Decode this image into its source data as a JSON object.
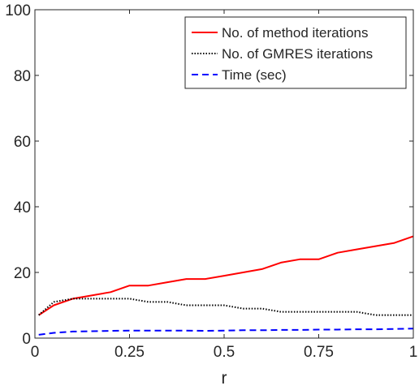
{
  "chart_data": {
    "type": "line",
    "xlabel": "r",
    "ylabel": "",
    "xlim": [
      0,
      1
    ],
    "ylim": [
      0,
      100
    ],
    "xticks": [
      0,
      0.25,
      0.5,
      0.75,
      1
    ],
    "yticks": [
      0,
      20,
      40,
      60,
      80,
      100
    ],
    "xtick_labels": [
      "0",
      "0.25",
      "0.5",
      "0.75",
      "1"
    ],
    "ytick_labels": [
      "0",
      "20",
      "40",
      "60",
      "80",
      "100"
    ],
    "grid": false,
    "legend_position": "top-right",
    "series": [
      {
        "name": "No. of method iterations",
        "color": "#ff0000",
        "style": "solid",
        "x": [
          0.01,
          0.05,
          0.1,
          0.15,
          0.2,
          0.25,
          0.3,
          0.35,
          0.4,
          0.45,
          0.5,
          0.55,
          0.6,
          0.65,
          0.7,
          0.75,
          0.8,
          0.85,
          0.9,
          0.95,
          1.0
        ],
        "y": [
          7,
          10,
          12,
          13,
          14,
          16,
          16,
          17,
          18,
          18,
          19,
          20,
          21,
          23,
          24,
          24,
          26,
          27,
          28,
          29,
          31
        ]
      },
      {
        "name": "No. of GMRES iterations",
        "color": "#000000",
        "style": "dotted",
        "x": [
          0.01,
          0.05,
          0.1,
          0.15,
          0.2,
          0.25,
          0.3,
          0.35,
          0.4,
          0.45,
          0.5,
          0.55,
          0.6,
          0.65,
          0.7,
          0.75,
          0.8,
          0.85,
          0.9,
          0.95,
          1.0
        ],
        "y": [
          7,
          11,
          12,
          12,
          12,
          12,
          11,
          11,
          10,
          10,
          10,
          9,
          9,
          8,
          8,
          8,
          8,
          8,
          7,
          7,
          7
        ]
      },
      {
        "name": "Time (sec)",
        "color": "#0000ff",
        "style": "dashed",
        "x": [
          0.01,
          0.05,
          0.1,
          0.15,
          0.2,
          0.25,
          0.3,
          0.35,
          0.4,
          0.45,
          0.5,
          0.55,
          0.6,
          0.65,
          0.7,
          0.75,
          0.8,
          0.85,
          0.9,
          0.95,
          1.0
        ],
        "y": [
          1.0,
          1.6,
          2.0,
          2.1,
          2.2,
          2.3,
          2.3,
          2.3,
          2.3,
          2.2,
          2.3,
          2.4,
          2.4,
          2.5,
          2.5,
          2.6,
          2.6,
          2.7,
          2.7,
          2.8,
          2.9
        ]
      }
    ]
  }
}
